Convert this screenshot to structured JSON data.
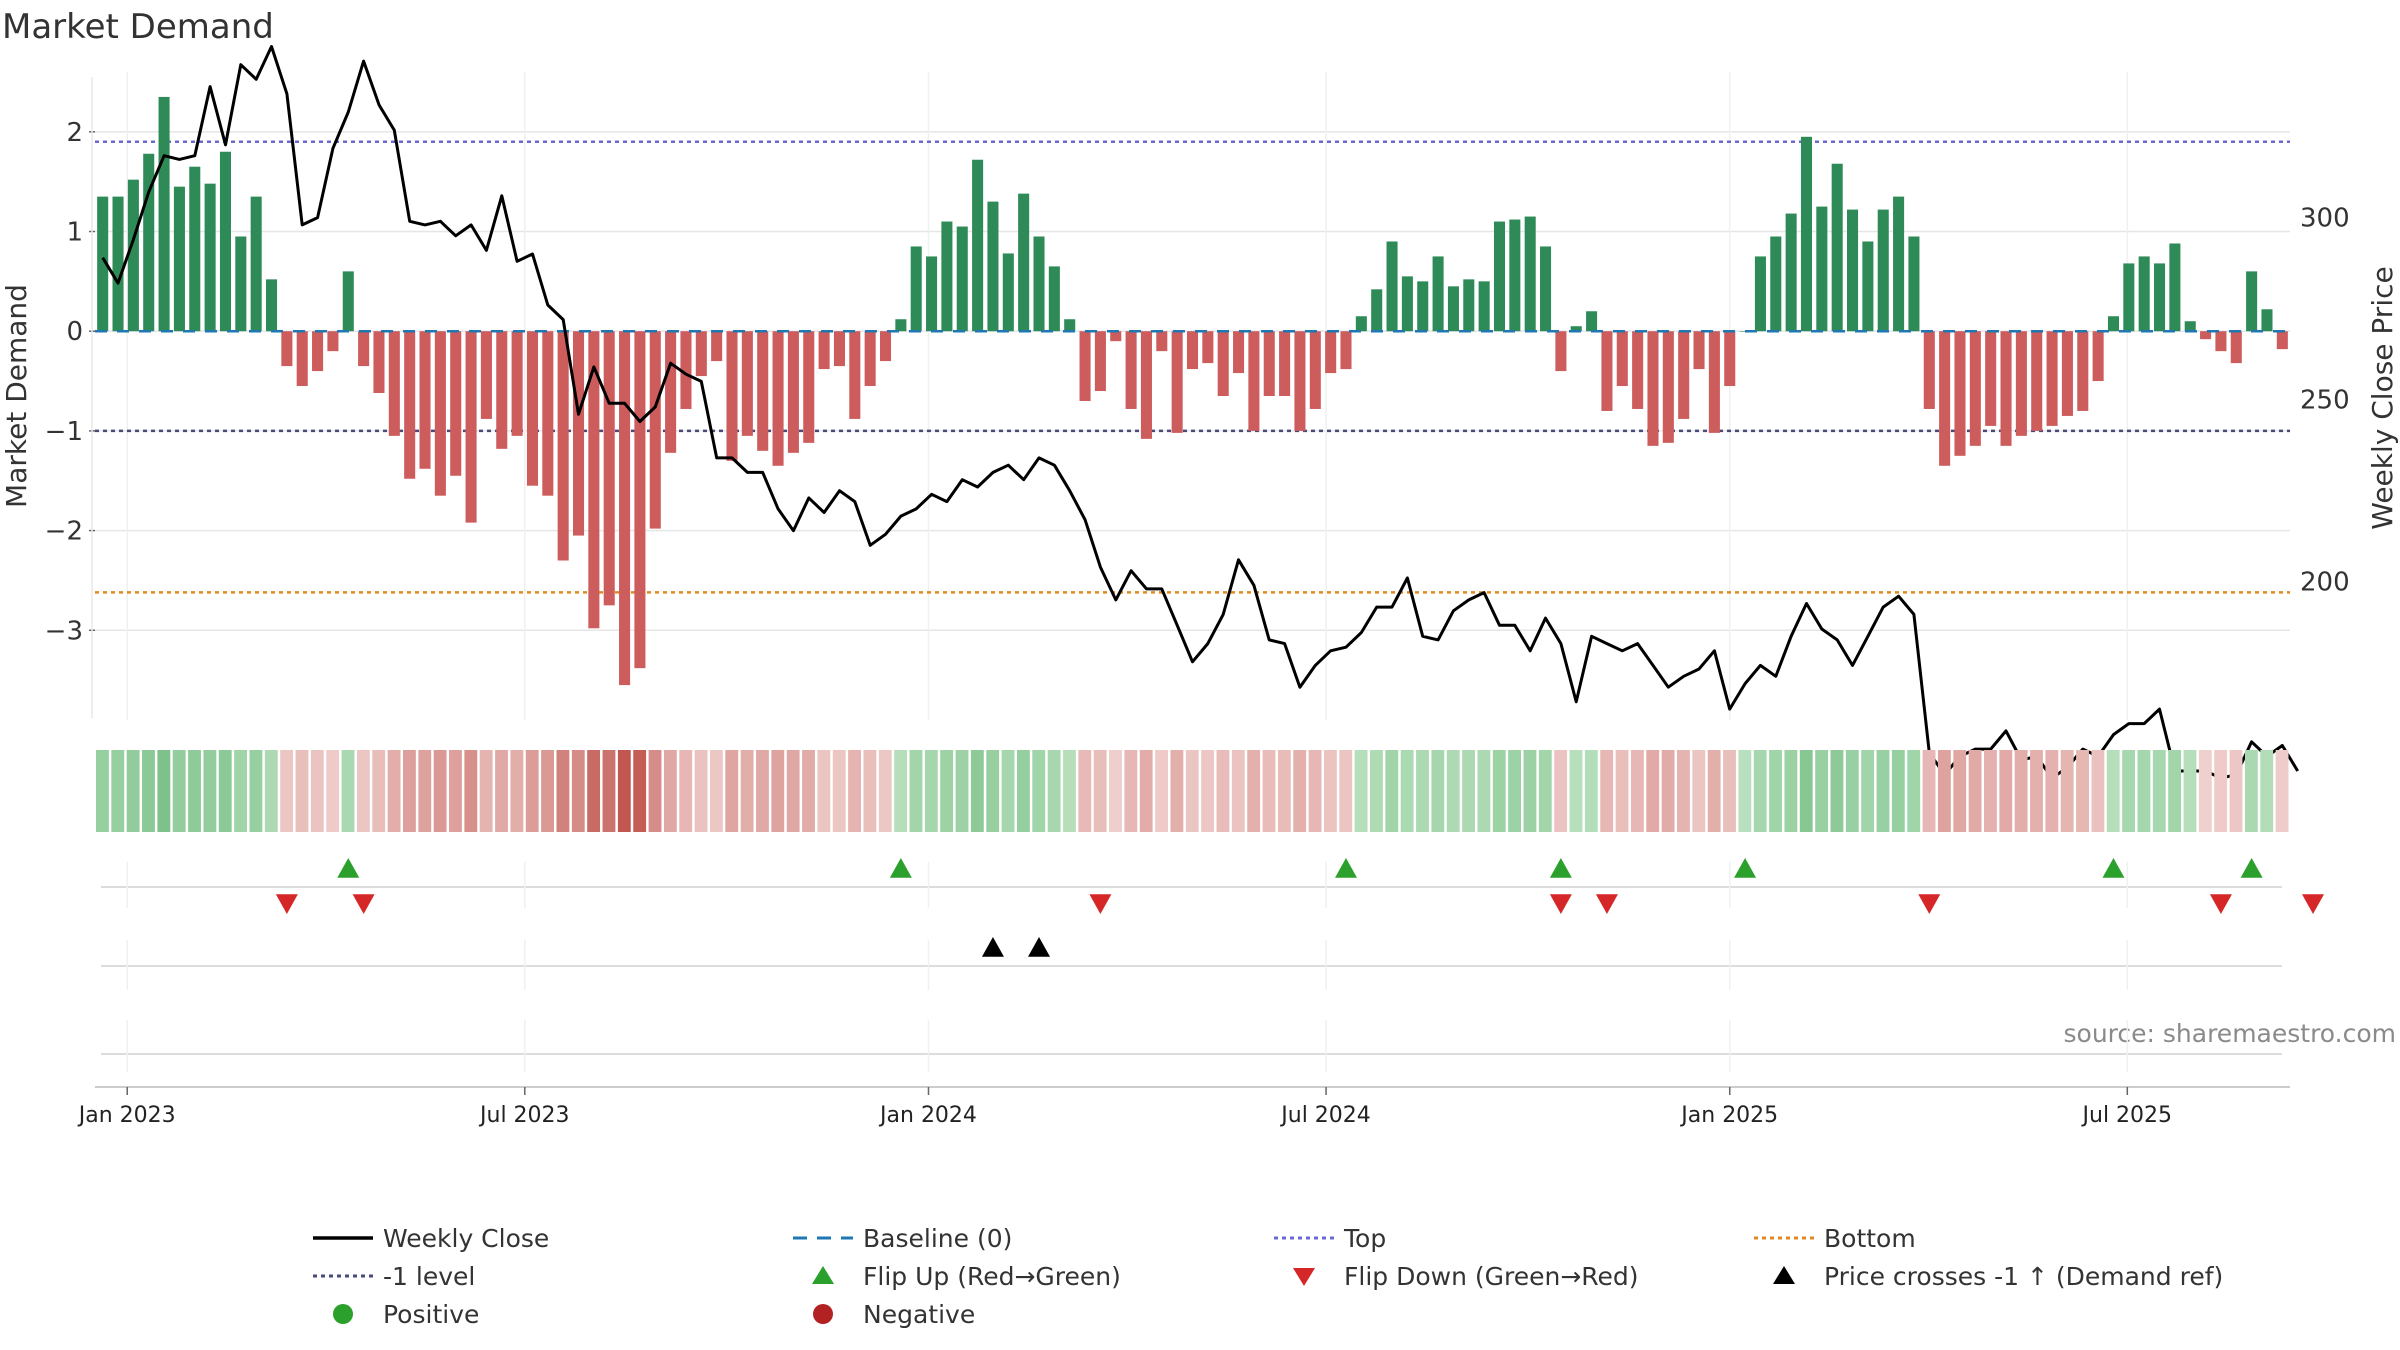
{
  "chart_data": {
    "type": "bar",
    "title": "Market Demand",
    "xlabel": "",
    "ylabel": "Market Demand",
    "y2label": "Weekly Close Price",
    "source": "source: sharemaestro.com",
    "ylim": [
      -3.9,
      2.6
    ],
    "y2lim": [
      162,
      340
    ],
    "yticks": [
      2,
      1,
      0,
      -1,
      -2,
      -3
    ],
    "ytick_labels": [
      "2",
      "1",
      "0",
      "−1",
      "−2",
      "−3"
    ],
    "y2ticks": [
      300,
      250,
      200
    ],
    "y2tick_labels": [
      "300",
      "250",
      "200"
    ],
    "levels": {
      "top": 1.9,
      "minus_one": -1.0,
      "bottom": -2.62,
      "baseline": 0
    },
    "x_start_week_index": 0,
    "xticks": [
      {
        "label": "Jan 2023",
        "week": 2.1
      },
      {
        "label": "Jul 2023",
        "week": 28.0
      },
      {
        "label": "Jan 2024",
        "week": 54.3
      },
      {
        "label": "Jul 2024",
        "week": 80.2
      },
      {
        "label": "Jan 2025",
        "week": 106.5
      },
      {
        "label": "Jul 2025",
        "week": 132.4
      }
    ],
    "series": [
      {
        "name": "Market Demand",
        "values": [
          1.35,
          1.35,
          1.52,
          1.78,
          2.35,
          1.45,
          1.65,
          1.48,
          1.8,
          0.95,
          1.35,
          0.52,
          -0.35,
          -0.55,
          -0.4,
          -0.2,
          0.6,
          -0.35,
          -0.62,
          -1.05,
          -1.48,
          -1.38,
          -1.65,
          -1.45,
          -1.92,
          -0.88,
          -1.18,
          -1.05,
          -1.55,
          -1.65,
          -2.3,
          -2.05,
          -2.98,
          -2.75,
          -3.55,
          -3.38,
          -1.98,
          -1.22,
          -0.78,
          -0.45,
          -0.3,
          -1.3,
          -1.05,
          -1.2,
          -1.35,
          -1.22,
          -1.12,
          -0.38,
          -0.35,
          -0.88,
          -0.55,
          -0.3,
          0.12,
          0.85,
          0.75,
          1.1,
          1.05,
          1.72,
          1.3,
          0.78,
          1.38,
          0.95,
          0.65,
          0.12,
          -0.7,
          -0.6,
          -0.1,
          -0.78,
          -1.08,
          -0.2,
          -1.02,
          -0.38,
          -0.32,
          -0.65,
          -0.42,
          -1.0,
          -0.65,
          -0.65,
          -1.0,
          -0.78,
          -0.42,
          -0.38,
          0.15,
          0.42,
          0.9,
          0.55,
          0.5,
          0.75,
          0.45,
          0.52,
          0.5,
          1.1,
          1.12,
          1.15,
          0.85,
          -0.4,
          0.05,
          0.2,
          -0.8,
          -0.55,
          -0.78,
          -1.15,
          -1.12,
          -0.88,
          -0.38,
          -1.02,
          -0.55,
          0.0,
          0.75,
          0.95,
          1.18,
          1.95,
          1.25,
          1.68,
          1.22,
          0.9,
          1.22,
          1.35,
          0.95,
          -0.78,
          -1.35,
          -1.25,
          -1.15,
          -0.95,
          -1.15,
          -1.05,
          -1.0,
          -0.95,
          -0.85,
          -0.8,
          -0.5,
          0.15,
          0.68,
          0.75,
          0.68,
          0.88,
          0.1,
          -0.08,
          -0.2,
          -0.32,
          0.6,
          0.22,
          -0.18
        ]
      },
      {
        "name": "Weekly Close",
        "values": [
          289,
          282,
          294,
          307,
          317,
          316,
          317,
          336,
          320,
          342,
          338,
          347,
          334,
          298,
          300,
          319,
          329,
          343,
          331,
          324,
          299,
          298,
          299,
          295,
          298,
          291,
          306,
          288,
          290,
          276,
          272,
          246,
          259,
          249,
          249,
          244,
          248,
          260,
          257,
          255,
          234,
          234,
          230,
          230,
          220,
          214,
          223,
          219,
          225,
          222,
          210,
          213,
          218,
          220,
          224,
          222,
          228,
          226,
          230,
          232,
          228,
          234,
          232,
          225,
          217,
          204,
          195,
          203,
          198,
          198,
          188,
          178,
          183,
          191,
          206,
          199,
          184,
          183,
          171,
          177,
          181,
          182,
          186,
          193,
          193,
          201,
          185,
          184,
          192,
          195,
          197,
          188,
          188,
          181,
          190,
          183,
          167,
          185,
          183,
          181,
          183,
          177,
          171,
          174,
          176,
          181,
          165,
          172,
          177,
          174,
          185,
          194,
          187,
          184,
          177,
          185,
          193,
          196,
          191,
          153,
          147,
          152,
          154,
          154,
          159,
          151,
          152,
          146,
          149,
          154,
          152,
          158,
          161,
          161,
          165,
          148,
          148,
          148,
          146,
          147,
          156,
          152,
          155,
          148
        ]
      }
    ],
    "heat_strip": "weekly demand-colored tiles (same values as Market Demand series)",
    "signals": {
      "flip_up_weeks": [
        16,
        52,
        81,
        95,
        107,
        131,
        140
      ],
      "flip_down_weeks": [
        12,
        17,
        65,
        95,
        98,
        119,
        138,
        144
      ],
      "price_cross_weeks": [
        58,
        61
      ]
    },
    "legend": [
      {
        "label": "Weekly Close",
        "marker": "line",
        "color": "#000000"
      },
      {
        "label": "Baseline (0)",
        "marker": "dash",
        "color": "#1f77b4"
      },
      {
        "label": "Top",
        "marker": "dots",
        "color": "#6a6ad0"
      },
      {
        "label": "Bottom",
        "marker": "dots",
        "color": "#e08a1e"
      },
      {
        "label": "-1 level",
        "marker": "dots",
        "color": "#4a4a7a"
      },
      {
        "label": "Flip Up (Red→Green)",
        "marker": "triangle-up",
        "color": "#2ca02c"
      },
      {
        "label": "Flip Down (Green→Red)",
        "marker": "triangle-down",
        "color": "#d62728"
      },
      {
        "label": "Price crosses -1 ↑ (Demand ref)",
        "marker": "triangle-up",
        "color": "#000000"
      },
      {
        "label": "Positive",
        "marker": "circle",
        "color": "#2ca02c"
      },
      {
        "label": "Negative",
        "marker": "circle",
        "color": "#b22222"
      }
    ],
    "colors": {
      "positive_bar": "#2e8b57",
      "negative_bar": "#cd5c5c",
      "price_line": "#000000",
      "baseline": "#1f77b4",
      "top_line": "#6a6ad0",
      "minus_one_line": "#4a4a7a",
      "bottom_line": "#e08a1e",
      "flip_up": "#2ca02c",
      "flip_down": "#d62728",
      "grid": "#e6e6e6"
    }
  }
}
